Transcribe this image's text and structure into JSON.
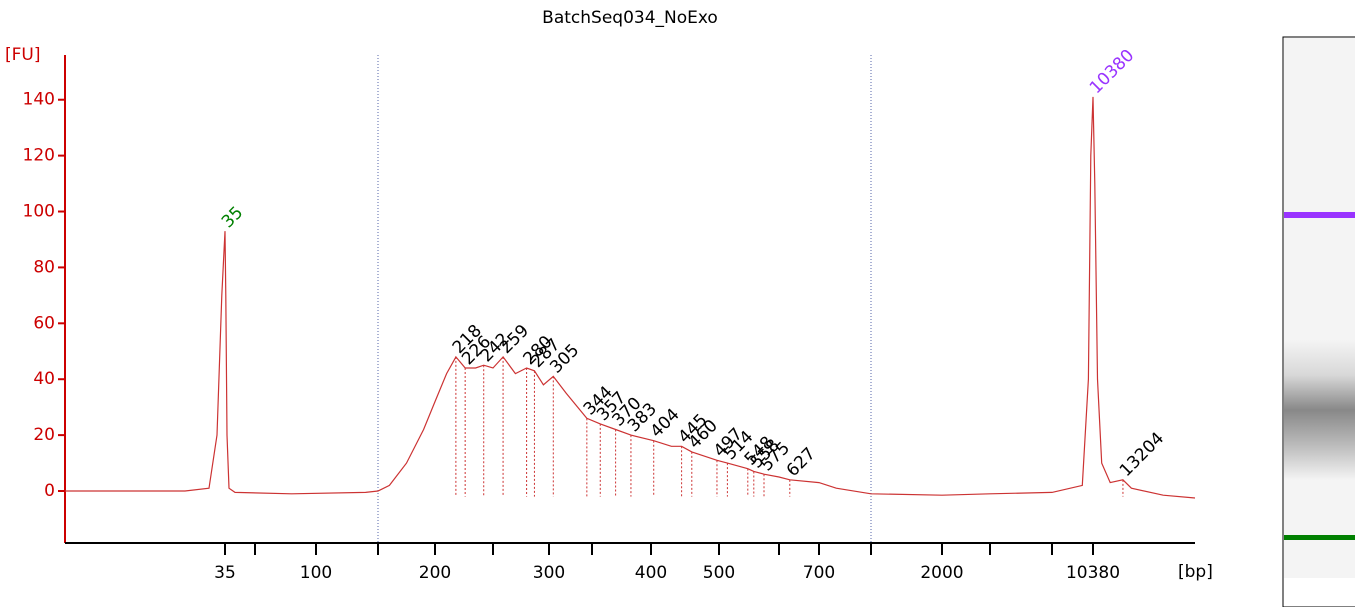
{
  "chart_data": {
    "type": "line",
    "title": "BatchSeq034_NoExo",
    "y_label": "[FU]",
    "x_label": "[bp]",
    "color": "#cc3333",
    "axis_color": "#cc0000",
    "ylim": [
      -18.6,
      156
    ],
    "yticks": [
      0,
      20,
      40,
      60,
      80,
      100,
      120,
      140
    ],
    "xlim": [
      15,
      20000
    ],
    "xticks": [
      35,
      100,
      200,
      300,
      400,
      500,
      700,
      2000,
      10380
    ],
    "minor_xticks": [
      50,
      150,
      250,
      350,
      600,
      1000,
      3000,
      7000
    ],
    "region": [
      150,
      1000
    ],
    "x": [
      15,
      30,
      33,
      34,
      34.6,
      35,
      35.4,
      36,
      37,
      40,
      80,
      140,
      150,
      160,
      175,
      190,
      200,
      210,
      218,
      226,
      235,
      242,
      250,
      259,
      270,
      280,
      287,
      295,
      305,
      320,
      344,
      357,
      370,
      383,
      404,
      430,
      445,
      460,
      497,
      514,
      548,
      558,
      575,
      600,
      627,
      700,
      800,
      1000,
      2000,
      3000,
      7000,
      9500,
      10000,
      10200,
      10380,
      10550,
      10800,
      11200,
      12000,
      13204,
      14000,
      17000,
      20000
    ],
    "values": [
      0,
      0,
      1,
      20,
      70,
      93,
      70,
      20,
      1,
      -0.5,
      -1,
      -0.5,
      0,
      2,
      10,
      22,
      32,
      42,
      48,
      44,
      44,
      45,
      44,
      48,
      42,
      44,
      43,
      38,
      41,
      35,
      26,
      24,
      22,
      20,
      18,
      16,
      16,
      14,
      11,
      10,
      8,
      7,
      6,
      5,
      4,
      3,
      1,
      -1,
      -1.5,
      -1,
      -0.5,
      2,
      40,
      120,
      141,
      110,
      40,
      10,
      3,
      4,
      1,
      -1.5,
      -2.5
    ],
    "peaks": [
      35,
      218,
      226,
      242,
      259,
      280,
      287,
      305,
      344,
      357,
      370,
      383,
      404,
      445,
      460,
      497,
      514,
      548,
      558,
      575,
      627,
      10380,
      13204
    ],
    "peak_heights": [
      93,
      48,
      44,
      45,
      48,
      44,
      43,
      41,
      26,
      24,
      22,
      20,
      18,
      16,
      14,
      11,
      10,
      8,
      7,
      6,
      4,
      141,
      4
    ],
    "peak_colors": [
      "#008000",
      "#000000",
      "#000000",
      "#000000",
      "#000000",
      "#000000",
      "#000000",
      "#000000",
      "#000000",
      "#000000",
      "#000000",
      "#000000",
      "#000000",
      "#000000",
      "#000000",
      "#000000",
      "#000000",
      "#000000",
      "#000000",
      "#000000",
      "#000000",
      "#9933ff",
      "#000000"
    ]
  }
}
